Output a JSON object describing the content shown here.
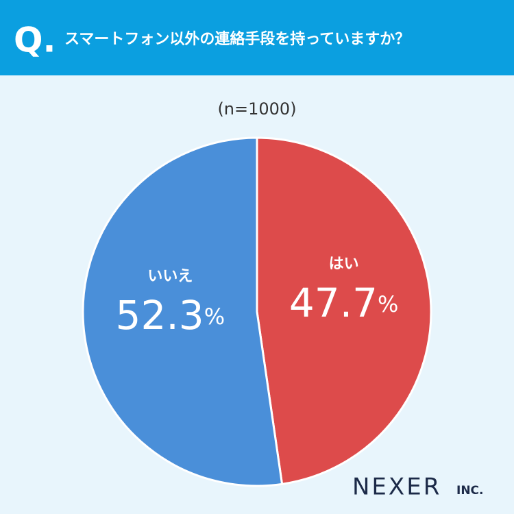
{
  "header": {
    "mark": "Q."
  },
  "chart_data": {
    "type": "pie",
    "title": "スマートフォン以外の連絡手段を持っていますか？",
    "subtitle": "(n=1000)",
    "categories": [
      "はい",
      "いいえ"
    ],
    "values": [
      47.7,
      52.3
    ],
    "value_labels": [
      "47.7%",
      "52.3%"
    ],
    "colors": [
      "#dd4b4b",
      "#4a8fd9"
    ]
  },
  "logo": {
    "name": "NEXER",
    "suffix": "INC."
  }
}
